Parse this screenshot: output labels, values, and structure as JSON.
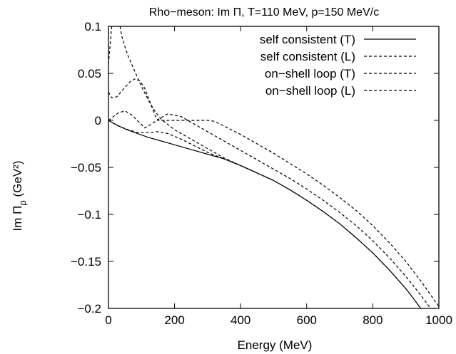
{
  "chart_data": {
    "type": "line",
    "title": "Rho−meson:  Im  Π, T=110 MeV, p=150 MeV/c",
    "xlabel": "Energy (MeV)",
    "ylabel": "Im Πρ (GeV²)",
    "xlim": [
      0,
      1000
    ],
    "ylim": [
      -0.2,
      0.1
    ],
    "x_ticks": [
      {
        "value": 0,
        "label": "0"
      },
      {
        "value": 200,
        "label": "200"
      },
      {
        "value": 400,
        "label": "400"
      },
      {
        "value": 600,
        "label": "600"
      },
      {
        "value": 800,
        "label": "800"
      },
      {
        "value": 1000,
        "label": "1000"
      }
    ],
    "y_ticks": [
      {
        "value": 0.1,
        "label": "0.1"
      },
      {
        "value": 0.05,
        "label": "0.05"
      },
      {
        "value": 0,
        "label": "0"
      },
      {
        "value": -0.05,
        "label": "−0.05"
      },
      {
        "value": -0.1,
        "label": "−0.1"
      },
      {
        "value": -0.15,
        "label": "−0.15"
      },
      {
        "value": -0.2,
        "label": "−0.2"
      }
    ],
    "grid": false,
    "legend_position": "top-right",
    "series": [
      {
        "name": "self consistent (T)",
        "style": "solid",
        "color": "#000000",
        "points": [
          [
            0,
            0
          ],
          [
            20,
            -0.004
          ],
          [
            50,
            -0.009
          ],
          [
            80,
            -0.013
          ],
          [
            120,
            -0.018
          ],
          [
            160,
            -0.022
          ],
          [
            200,
            -0.026
          ],
          [
            250,
            -0.031
          ],
          [
            300,
            -0.036
          ],
          [
            350,
            -0.041
          ],
          [
            400,
            -0.048
          ],
          [
            450,
            -0.056
          ],
          [
            500,
            -0.064
          ],
          [
            550,
            -0.074
          ],
          [
            600,
            -0.085
          ],
          [
            650,
            -0.097
          ],
          [
            700,
            -0.11
          ],
          [
            750,
            -0.125
          ],
          [
            800,
            -0.141
          ],
          [
            850,
            -0.159
          ],
          [
            900,
            -0.179
          ],
          [
            920,
            -0.188
          ],
          [
            945,
            -0.2
          ]
        ]
      },
      {
        "name": "self consistent (L)",
        "style": "dashed",
        "color": "#000000",
        "points": [
          [
            0,
            0
          ],
          [
            30,
            -0.006
          ],
          [
            60,
            -0.01
          ],
          [
            90,
            -0.013
          ],
          [
            120,
            -0.013
          ],
          [
            150,
            -0.012
          ],
          [
            180,
            -0.014
          ],
          [
            220,
            -0.02
          ],
          [
            260,
            -0.027
          ],
          [
            300,
            -0.034
          ],
          [
            350,
            -0.041
          ],
          [
            400,
            -0.048
          ],
          [
            450,
            -0.056
          ],
          [
            500,
            -0.064
          ],
          [
            550,
            -0.074
          ],
          [
            600,
            -0.085
          ],
          [
            650,
            -0.097
          ],
          [
            700,
            -0.11
          ],
          [
            750,
            -0.125
          ],
          [
            800,
            -0.141
          ],
          [
            850,
            -0.159
          ],
          [
            900,
            -0.179
          ],
          [
            920,
            -0.188
          ],
          [
            945,
            -0.2
          ]
        ]
      },
      {
        "name": "on−shell loop (T)",
        "style": "dashed",
        "color": "#000000",
        "points": [
          [
            0,
            0.03
          ],
          [
            10,
            0.024
          ],
          [
            25,
            0.025
          ],
          [
            45,
            0.033
          ],
          [
            65,
            0.041
          ],
          [
            80,
            0.044
          ],
          [
            95,
            0.042
          ],
          [
            110,
            0.034
          ],
          [
            125,
            0.02
          ],
          [
            140,
            0.006
          ],
          [
            150,
            0
          ],
          [
            200,
            0
          ],
          [
            250,
            0
          ],
          [
            300,
            0
          ],
          [
            320,
            -0.001
          ],
          [
            350,
            -0.006
          ],
          [
            400,
            -0.015
          ],
          [
            450,
            -0.025
          ],
          [
            500,
            -0.035
          ],
          [
            550,
            -0.046
          ],
          [
            600,
            -0.057
          ],
          [
            650,
            -0.069
          ],
          [
            700,
            -0.082
          ],
          [
            750,
            -0.096
          ],
          [
            800,
            -0.112
          ],
          [
            850,
            -0.13
          ],
          [
            900,
            -0.15
          ],
          [
            950,
            -0.173
          ],
          [
            1000,
            -0.198
          ]
        ]
      },
      {
        "name": "on−shell loop (L)",
        "style": "dashed",
        "color": "#000000",
        "points": [
          [
            0,
            0
          ],
          [
            15,
            0.004
          ],
          [
            30,
            0.008
          ],
          [
            50,
            0.01
          ],
          [
            70,
            0.006
          ],
          [
            90,
            -0.001
          ],
          [
            110,
            -0.008
          ],
          [
            130,
            -0.004
          ],
          [
            150,
            0.001
          ],
          [
            180,
            0.007
          ],
          [
            220,
            0.004
          ],
          [
            260,
            -0.004
          ],
          [
            300,
            -0.012
          ],
          [
            350,
            -0.022
          ],
          [
            400,
            -0.032
          ],
          [
            450,
            -0.042
          ],
          [
            500,
            -0.052
          ],
          [
            550,
            -0.062
          ],
          [
            600,
            -0.073
          ],
          [
            650,
            -0.085
          ],
          [
            700,
            -0.098
          ],
          [
            750,
            -0.112
          ],
          [
            800,
            -0.128
          ],
          [
            850,
            -0.146
          ],
          [
            900,
            -0.166
          ],
          [
            950,
            -0.188
          ],
          [
            975,
            -0.2
          ]
        ]
      },
      {
        "name": "",
        "style": "dashed",
        "color": "#000000",
        "points": [
          [
            0,
            0.06
          ],
          [
            10,
            0.1
          ]
        ]
      },
      {
        "name": "",
        "style": "dashed",
        "color": "#000000",
        "points": [
          [
            35,
            0.1
          ],
          [
            40,
            0.09
          ],
          [
            50,
            0.078
          ],
          [
            60,
            0.068
          ],
          [
            80,
            0.052
          ],
          [
            100,
            0.036
          ],
          [
            120,
            0.022
          ],
          [
            140,
            0.01
          ],
          [
            160,
            0.001
          ],
          [
            200,
            -0.01
          ],
          [
            250,
            -0.02
          ],
          [
            300,
            -0.03
          ],
          [
            350,
            -0.04
          ],
          [
            400,
            -0.048
          ],
          [
            450,
            -0.056
          ]
        ]
      }
    ]
  }
}
